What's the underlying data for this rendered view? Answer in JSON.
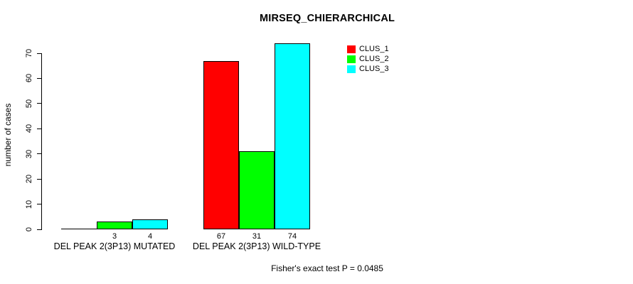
{
  "title": "MIRSEQ_CHIERARCHICAL",
  "footer": "Fisher's exact test P = 0.0485",
  "chart_data": {
    "type": "bar",
    "title": "MIRSEQ_CHIERARCHICAL",
    "xlabel": "",
    "ylabel": "number of cases",
    "ylim": [
      0,
      70
    ],
    "yticks": [
      0,
      10,
      20,
      30,
      40,
      50,
      60,
      70
    ],
    "grid": false,
    "legend_position": "top-right",
    "categories": [
      "DEL PEAK 2(3P13) MUTATED",
      "DEL PEAK 2(3P13) WILD-TYPE"
    ],
    "series": [
      {
        "name": "CLUS_1",
        "color": "#FF0000",
        "values": [
          0,
          67
        ]
      },
      {
        "name": "CLUS_2",
        "color": "#00FF00",
        "values": [
          3,
          31
        ]
      },
      {
        "name": "CLUS_3",
        "color": "#00FFFF",
        "values": [
          4,
          74
        ]
      }
    ],
    "bar_value_labels": [
      [
        "",
        "3",
        "4"
      ],
      [
        "67",
        "31",
        "74"
      ]
    ],
    "annotation": "Fisher's exact test P = 0.0485"
  }
}
